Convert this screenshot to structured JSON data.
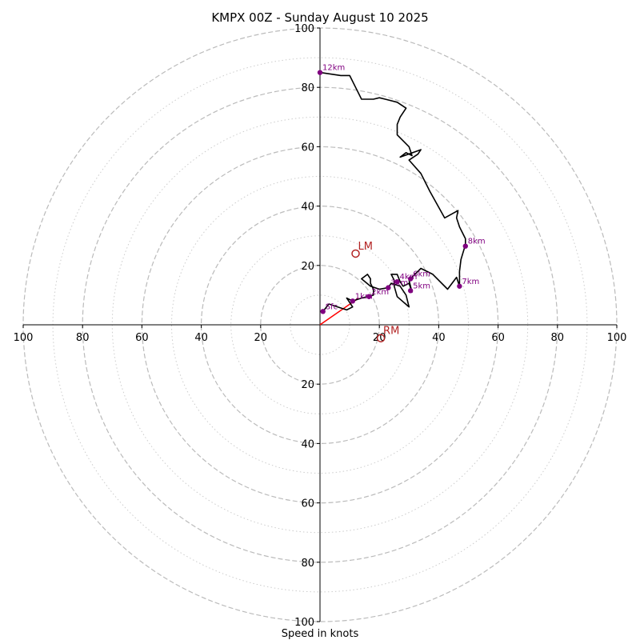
{
  "chart_data": {
    "type": "line",
    "title": "KMPX 00Z - Sunday August 10 2025",
    "xlabel": "Speed in knots",
    "ylabel": "",
    "xlim": [
      -100,
      100
    ],
    "ylim": [
      -100,
      100
    ],
    "grid": true,
    "rings_dashed": [
      20,
      40,
      60,
      80,
      100
    ],
    "rings_dotted": [
      10,
      30,
      50,
      70,
      90
    ],
    "x_ticks": [
      {
        "v": -100,
        "label": "100"
      },
      {
        "v": -80,
        "label": "80"
      },
      {
        "v": -60,
        "label": "60"
      },
      {
        "v": -40,
        "label": "40"
      },
      {
        "v": -20,
        "label": "20"
      },
      {
        "v": 20,
        "label": "20"
      },
      {
        "v": 40,
        "label": "40"
      },
      {
        "v": 60,
        "label": "60"
      },
      {
        "v": 80,
        "label": "80"
      },
      {
        "v": 100,
        "label": "100"
      }
    ],
    "y_ticks": [
      {
        "v": 100,
        "label": "100"
      },
      {
        "v": 80,
        "label": "80"
      },
      {
        "v": 60,
        "label": "60"
      },
      {
        "v": 40,
        "label": "40"
      },
      {
        "v": 20,
        "label": "20"
      },
      {
        "v": -20,
        "label": "20"
      },
      {
        "v": -40,
        "label": "40"
      },
      {
        "v": -60,
        "label": "60"
      },
      {
        "v": -80,
        "label": "80"
      },
      {
        "v": -100,
        "label": "100"
      }
    ],
    "hodograph": {
      "color": "#000000",
      "points": [
        [
          1,
          4.5
        ],
        [
          3,
          7
        ],
        [
          6,
          6
        ],
        [
          9,
          5
        ],
        [
          11,
          6
        ],
        [
          9,
          9
        ],
        [
          11,
          8
        ],
        [
          14,
          9
        ],
        [
          16,
          9.5
        ],
        [
          18,
          10
        ],
        [
          18,
          12
        ],
        [
          17,
          14
        ],
        [
          17,
          15.5
        ],
        [
          16,
          17
        ],
        [
          14,
          15.5
        ],
        [
          17,
          13
        ],
        [
          20,
          12
        ],
        [
          23,
          12.5
        ],
        [
          24,
          14
        ],
        [
          27,
          13
        ],
        [
          29,
          10
        ],
        [
          30,
          6
        ],
        [
          26,
          9.5
        ],
        [
          25,
          13
        ],
        [
          25,
          15
        ],
        [
          24,
          17
        ],
        [
          26,
          17
        ],
        [
          27,
          14.5
        ],
        [
          28,
          13
        ],
        [
          30,
          14
        ],
        [
          31,
          11
        ],
        [
          30,
          15
        ],
        [
          31,
          16
        ],
        [
          34,
          19
        ],
        [
          38,
          17
        ],
        [
          43,
          12
        ],
        [
          46,
          16
        ],
        [
          47,
          13
        ],
        [
          47,
          18
        ],
        [
          47.5,
          22
        ],
        [
          49,
          27
        ],
        [
          49,
          29
        ],
        [
          47,
          33
        ],
        [
          46,
          36
        ],
        [
          46.5,
          38.5
        ],
        [
          42,
          36
        ],
        [
          37,
          45
        ],
        [
          34,
          51
        ],
        [
          30,
          55.5
        ],
        [
          33,
          57.5
        ],
        [
          34,
          59
        ],
        [
          27,
          56.5
        ],
        [
          29,
          58
        ],
        [
          31,
          57
        ],
        [
          30,
          60
        ],
        [
          26,
          64
        ],
        [
          26,
          67.5
        ],
        [
          27,
          70
        ],
        [
          29,
          73
        ],
        [
          26,
          75
        ],
        [
          22,
          76
        ],
        [
          20,
          76.5
        ],
        [
          18,
          76
        ],
        [
          14,
          76
        ],
        [
          12,
          80
        ],
        [
          10,
          84
        ],
        [
          7,
          84
        ],
        [
          0,
          85
        ]
      ]
    },
    "height_markers": [
      {
        "label": "Sfc",
        "x": 1,
        "y": 4.5
      },
      {
        "label": "1km",
        "x": 11,
        "y": 8
      },
      {
        "label": "2km",
        "x": 16.5,
        "y": 9.5
      },
      {
        "label": "3km",
        "x": 23,
        "y": 12.5
      },
      {
        "label": "4km",
        "x": 26,
        "y": 14.5
      },
      {
        "label": "6km",
        "x": 30.5,
        "y": 15.5
      },
      {
        "label": "5km",
        "x": 30.5,
        "y": 11.5
      },
      {
        "label": "7km",
        "x": 47,
        "y": 13
      },
      {
        "label": "8km",
        "x": 49,
        "y": 26.5
      },
      {
        "label": "12km",
        "x": 0,
        "y": 85
      }
    ],
    "marker_color": "#800080",
    "storm_motion": [
      {
        "label": "LM",
        "x": 12,
        "y": 24
      },
      {
        "label": "RM",
        "x": 20.5,
        "y": -4.5
      }
    ],
    "storm_motion_color": "#b22222",
    "mean_wind_vector": {
      "x": 13,
      "y": 9,
      "color": "#ff0000"
    }
  }
}
